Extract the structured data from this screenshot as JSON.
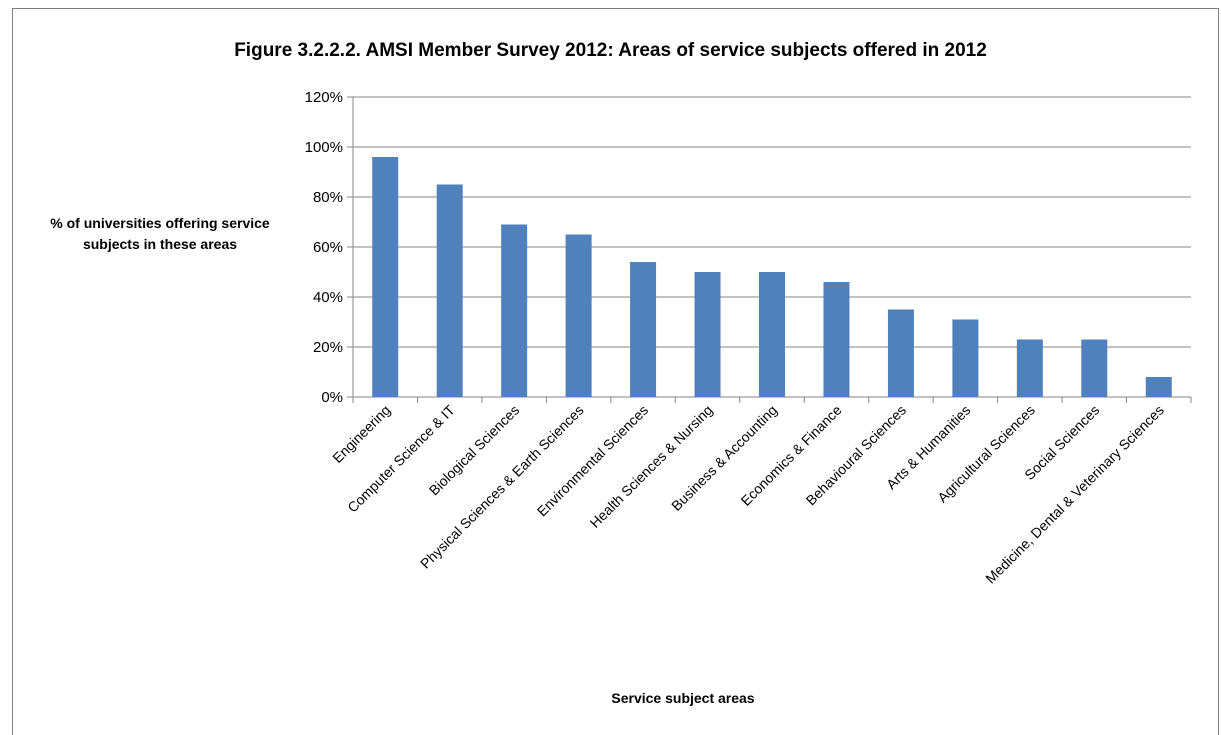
{
  "chart_data": {
    "type": "bar",
    "title": "Figure 3.2.2.2. AMSI Member Survey 2012: Areas of service subjects offered in 2012",
    "ylabel": "% of universities offering service subjects in these areas",
    "xlabel": "Service subject areas",
    "ylim": [
      0,
      120
    ],
    "yticks": [
      "0%",
      "20%",
      "40%",
      "60%",
      "80%",
      "100%",
      "120%"
    ],
    "grid": true,
    "legend": "none",
    "bar_color": "#4f81bd",
    "categories": [
      "Engineering",
      "Computer Science & IT",
      "Biological Sciences",
      "Physical Sciences & Earth Sciences",
      "Environmental Sciences",
      "Health Sciences & Nursing",
      "Business & Accounting",
      "Economics & Finance",
      "Behavioural Sciences",
      "Arts & Humanities",
      "Agricultural Sciences",
      "Social Sciences",
      "Medicine, Dental & Veterinary Sciences"
    ],
    "values": [
      96,
      85,
      69,
      65,
      54,
      50,
      50,
      46,
      35,
      31,
      23,
      23,
      8
    ]
  }
}
